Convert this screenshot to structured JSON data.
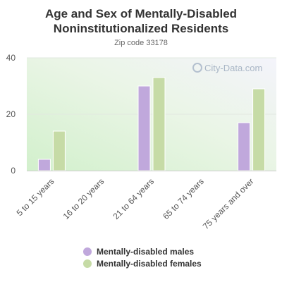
{
  "chart_data": {
    "type": "bar",
    "title_lines": [
      "Age and Sex of Mentally-Disabled",
      "Noninstitutionalized Residents"
    ],
    "subtitle": "Zip code 33178",
    "categories": [
      "5 to 15 years",
      "16 to 20 years",
      "21 to 64 years",
      "65 to 74 years",
      "75 years and over"
    ],
    "series": [
      {
        "name": "Mentally-disabled males",
        "color": "#c0a8dc",
        "values": [
          4,
          0,
          30,
          0,
          17
        ]
      },
      {
        "name": "Mentally-disabled females",
        "color": "#c6dba6",
        "values": [
          14,
          0,
          33,
          0,
          29
        ]
      }
    ],
    "y_ticks": [
      0,
      20,
      40
    ],
    "ylim": [
      0,
      40
    ],
    "grid": true,
    "legend_position": "bottom",
    "watermark": "City-Data.com"
  }
}
